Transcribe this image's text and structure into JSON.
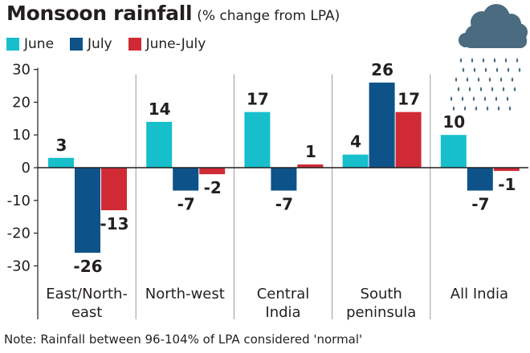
{
  "chart_data": {
    "type": "bar",
    "title": "Monsoon rainfall",
    "subtitle": "(% change from LPA)",
    "categories": [
      "East/North-\neast",
      "North-west",
      "Central\nIndia",
      "South\npeninsula",
      "All India"
    ],
    "series": [
      {
        "name": "June",
        "values": [
          3,
          14,
          17,
          4,
          10
        ]
      },
      {
        "name": "July",
        "values": [
          -26,
          -7,
          -7,
          26,
          -7
        ]
      },
      {
        "name": "June-July",
        "values": [
          -13,
          -2,
          1,
          17,
          -1
        ]
      }
    ],
    "ylim": [
      -35,
      30
    ],
    "yticks": [
      30,
      20,
      10,
      0,
      -10,
      -20,
      -30
    ],
    "xlabel": "",
    "ylabel": "",
    "grid": false,
    "legend": "top-left",
    "note": "Note: Rainfall between 96-104% of LPA considered 'normal'"
  },
  "colors": {
    "June": "#16bfcb",
    "July": "#0d5389",
    "June-July": "#d02b35",
    "text": "#231f20",
    "divider": "#9a9a9a",
    "cloud": "#4a6b80",
    "rain": "#4a6b80"
  },
  "decoration": {
    "icon": "rain-cloud-icon"
  }
}
